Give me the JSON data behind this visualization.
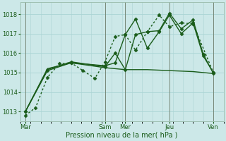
{
  "background_color": "#cce8e8",
  "grid_color": "#aad4d4",
  "line_color": "#1a5c1a",
  "xlabel": "Pression niveau de la mer( hPa )",
  "ylim": [
    1012.5,
    1018.6
  ],
  "yticks": [
    1013,
    1014,
    1015,
    1016,
    1017,
    1018
  ],
  "xlim": [
    0,
    120
  ],
  "day_labels": [
    "Mar",
    "Sam",
    "Mer",
    "Jeu",
    "Ven"
  ],
  "day_positions": [
    3,
    50,
    62,
    88,
    114
  ],
  "vline_positions": [
    3,
    50,
    62,
    88,
    114
  ],
  "lines": [
    {
      "x": [
        3,
        9,
        16,
        23,
        30,
        37,
        44,
        50,
        56,
        62,
        68,
        75,
        82,
        88,
        95,
        102,
        114
      ],
      "y": [
        1012.8,
        1013.2,
        1014.75,
        1015.45,
        1015.5,
        1015.1,
        1014.7,
        1015.55,
        1016.85,
        1016.95,
        1016.15,
        1017.1,
        1017.95,
        1017.35,
        1017.55,
        1017.5,
        1015.0
      ],
      "style": "dotted",
      "marker": "D",
      "markersize": 2.5,
      "linewidth": 1.0
    },
    {
      "x": [
        3,
        16,
        30,
        50,
        56,
        62,
        68,
        75,
        82,
        88,
        95,
        102,
        108,
        114
      ],
      "y": [
        1013.0,
        1015.1,
        1015.5,
        1015.35,
        1015.5,
        1016.95,
        1017.75,
        1016.25,
        1017.1,
        1017.95,
        1017.0,
        1017.55,
        1015.85,
        1015.0
      ],
      "style": "solid",
      "marker": "D",
      "markersize": 2.5,
      "linewidth": 1.0
    },
    {
      "x": [
        3,
        16,
        30,
        50,
        56,
        62,
        68,
        75,
        82,
        88,
        95,
        102,
        108,
        114
      ],
      "y": [
        1013.0,
        1015.15,
        1015.55,
        1015.3,
        1016.0,
        1015.15,
        1016.95,
        1017.1,
        1017.15,
        1018.05,
        1017.25,
        1017.7,
        1015.95,
        1014.95
      ],
      "style": "solid",
      "marker": "D",
      "markersize": 2.5,
      "linewidth": 1.0
    },
    {
      "x": [
        3,
        16,
        30,
        50,
        62,
        75,
        88,
        102,
        114
      ],
      "y": [
        1013.0,
        1015.2,
        1015.5,
        1015.25,
        1015.15,
        1015.15,
        1015.1,
        1015.05,
        1014.95
      ],
      "style": "solid",
      "marker": null,
      "markersize": 0,
      "linewidth": 1.0
    }
  ],
  "minor_xtick_step": 6,
  "tick_labelsize": 6,
  "xlabel_fontsize": 7
}
